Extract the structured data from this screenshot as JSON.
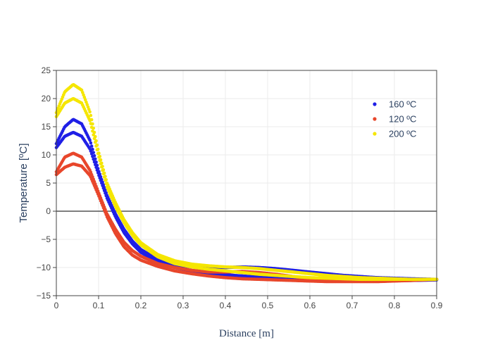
{
  "chart_data": {
    "type": "scatter",
    "xlabel": "Distance [m]",
    "ylabel": "Temperature [ºC]",
    "xlim": [
      0,
      0.9
    ],
    "ylim": [
      -15,
      25
    ],
    "x_ticks": [
      "0",
      "0.1",
      "0.2",
      "0.3",
      "0.4",
      "0.5",
      "0.6",
      "0.7",
      "0.8",
      "0.9"
    ],
    "y_ticks": [
      "−15",
      "−10",
      "−5",
      "0",
      "5",
      "10",
      "15",
      "20",
      "25"
    ],
    "grid": true,
    "zero_line": true,
    "legend_position": "top-right",
    "series": [
      {
        "name": "160 ºC",
        "color": "#1f1fe6",
        "branches": [
          {
            "x": [
              0,
              0.02,
              0.04,
              0.06,
              0.08,
              0.1,
              0.12,
              0.14,
              0.16,
              0.18,
              0.2,
              0.24,
              0.28,
              0.32,
              0.36,
              0.4,
              0.44,
              0.48,
              0.52,
              0.56,
              0.6,
              0.64,
              0.68,
              0.72,
              0.76,
              0.8,
              0.84,
              0.9
            ],
            "y": [
              12,
              15,
              16.3,
              15.5,
              12.5,
              7.2,
              2.8,
              -0.5,
              -3.2,
              -5.3,
              -6.8,
              -8.6,
              -9.5,
              -9.9,
              -10.0,
              -10.0,
              -9.9,
              -10.0,
              -10.2,
              -10.5,
              -10.8,
              -11.1,
              -11.4,
              -11.6,
              -11.8,
              -11.9,
              -12.0,
              -12.1
            ]
          },
          {
            "x": [
              0,
              0.02,
              0.04,
              0.06,
              0.08,
              0.1,
              0.12,
              0.14,
              0.16,
              0.18,
              0.2,
              0.24,
              0.28,
              0.32,
              0.36,
              0.4,
              0.44,
              0.48,
              0.52,
              0.56,
              0.6,
              0.64,
              0.68,
              0.72,
              0.76,
              0.8,
              0.84,
              0.9
            ],
            "y": [
              11.3,
              13.3,
              14.0,
              13.3,
              11.0,
              6.5,
              2.3,
              -1.0,
              -3.8,
              -5.8,
              -7.3,
              -9.0,
              -10.0,
              -10.6,
              -11.0,
              -11.3,
              -11.5,
              -11.7,
              -11.8,
              -11.9,
              -12.0,
              -12.1,
              -12.2,
              -12.3,
              -12.3,
              -12.3,
              -12.3,
              -12.2
            ]
          }
        ]
      },
      {
        "name": "120 ºC",
        "color": "#e8462b",
        "branches": [
          {
            "x": [
              0,
              0.02,
              0.04,
              0.06,
              0.08,
              0.1,
              0.12,
              0.14,
              0.16,
              0.18,
              0.2,
              0.24,
              0.28,
              0.32,
              0.36,
              0.4,
              0.44,
              0.48,
              0.52,
              0.56,
              0.6,
              0.64,
              0.68,
              0.72,
              0.76,
              0.8,
              0.84,
              0.9
            ],
            "y": [
              7.0,
              9.6,
              10.3,
              9.6,
              7.2,
              3.3,
              -0.5,
              -3.2,
              -5.5,
              -7.0,
              -8.0,
              -9.3,
              -10.0,
              -10.5,
              -10.8,
              -10.8,
              -10.7,
              -10.9,
              -11.2,
              -11.6,
              -12.0,
              -12.2,
              -12.4,
              -12.4,
              -12.4,
              -12.3,
              -12.2,
              -12.1
            ]
          },
          {
            "x": [
              0,
              0.02,
              0.04,
              0.06,
              0.08,
              0.1,
              0.12,
              0.14,
              0.16,
              0.18,
              0.2,
              0.24,
              0.28,
              0.32,
              0.36,
              0.4,
              0.44,
              0.48,
              0.52,
              0.56,
              0.6,
              0.64,
              0.68,
              0.72,
              0.76,
              0.8,
              0.84,
              0.9
            ],
            "y": [
              6.5,
              7.8,
              8.4,
              8.0,
              6.3,
              2.8,
              -1.0,
              -4.0,
              -6.3,
              -7.8,
              -8.7,
              -9.8,
              -10.6,
              -11.1,
              -11.5,
              -11.8,
              -12.0,
              -12.1,
              -12.2,
              -12.3,
              -12.4,
              -12.5,
              -12.5,
              -12.5,
              -12.5,
              -12.4,
              -12.3,
              -12.1
            ]
          }
        ]
      },
      {
        "name": "200 ºC",
        "color": "#f5e600",
        "branches": [
          {
            "x": [
              0,
              0.02,
              0.04,
              0.06,
              0.08,
              0.1,
              0.12,
              0.14,
              0.16,
              0.18,
              0.2,
              0.24,
              0.28,
              0.32,
              0.36,
              0.4,
              0.44,
              0.48,
              0.52,
              0.56,
              0.6,
              0.64,
              0.68,
              0.72,
              0.76,
              0.8,
              0.84,
              0.9
            ],
            "y": [
              17.5,
              21.2,
              22.5,
              21.5,
              17.5,
              10.5,
              5.0,
              1.5,
              -1.5,
              -3.8,
              -5.6,
              -7.7,
              -8.8,
              -9.4,
              -9.7,
              -9.9,
              -10.0,
              -10.2,
              -10.5,
              -10.8,
              -11.1,
              -11.4,
              -11.6,
              -11.8,
              -11.9,
              -12.0,
              -12.1,
              -12.1
            ]
          },
          {
            "x": [
              0,
              0.02,
              0.04,
              0.06,
              0.08,
              0.1,
              0.12,
              0.14,
              0.16,
              0.18,
              0.2,
              0.24,
              0.28,
              0.32,
              0.36,
              0.4,
              0.44,
              0.48,
              0.52,
              0.56,
              0.6,
              0.64,
              0.68,
              0.72,
              0.76,
              0.8,
              0.84,
              0.9
            ],
            "y": [
              16.8,
              19.2,
              20.0,
              19.2,
              16.0,
              9.8,
              4.3,
              0.8,
              -2.0,
              -4.3,
              -6.0,
              -8.1,
              -9.3,
              -9.9,
              -10.3,
              -10.6,
              -10.9,
              -11.2,
              -11.4,
              -11.6,
              -11.8,
              -11.9,
              -12.0,
              -12.1,
              -12.1,
              -12.1,
              -12.1,
              -12.1
            ]
          }
        ]
      }
    ]
  }
}
